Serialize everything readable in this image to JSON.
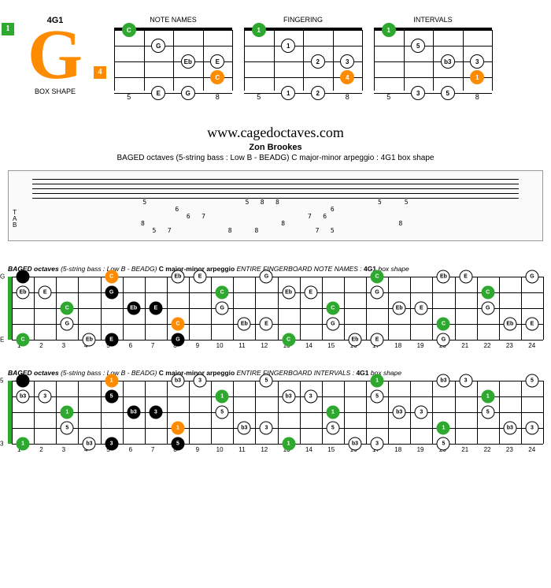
{
  "box": {
    "label": "4G1",
    "shape_text": "BOX SHAPE",
    "marker1": "1",
    "marker4": "4"
  },
  "mini": [
    {
      "title": "NOTE NAMES",
      "frets": [
        "5",
        "6",
        "7",
        "8"
      ],
      "notes": [
        {
          "s": 0,
          "f": 0,
          "l": "C",
          "c": "green"
        },
        {
          "s": 1,
          "f": 1,
          "l": "G",
          "c": "white"
        },
        {
          "s": 2,
          "f": 2,
          "l": "Eb",
          "c": "white"
        },
        {
          "s": 2,
          "f": 3,
          "l": "E",
          "c": "white"
        },
        {
          "s": 3,
          "f": 3,
          "l": "C",
          "c": "orange"
        },
        {
          "s": 4,
          "f": 1,
          "l": "E",
          "c": "white"
        },
        {
          "s": 4,
          "f": 2,
          "l": "G",
          "c": "white"
        }
      ]
    },
    {
      "title": "FINGERING",
      "frets": [
        "5",
        "6",
        "7",
        "8"
      ],
      "notes": [
        {
          "s": 0,
          "f": 0,
          "l": "1",
          "c": "green"
        },
        {
          "s": 1,
          "f": 1,
          "l": "1",
          "c": "white"
        },
        {
          "s": 2,
          "f": 2,
          "l": "2",
          "c": "white"
        },
        {
          "s": 2,
          "f": 3,
          "l": "3",
          "c": "white"
        },
        {
          "s": 3,
          "f": 3,
          "l": "4",
          "c": "orange"
        },
        {
          "s": 4,
          "f": 1,
          "l": "1",
          "c": "white"
        },
        {
          "s": 4,
          "f": 2,
          "l": "2",
          "c": "white"
        }
      ]
    },
    {
      "title": "INTERVALS",
      "frets": [
        "5",
        "6",
        "7",
        "8"
      ],
      "notes": [
        {
          "s": 0,
          "f": 0,
          "l": "1",
          "c": "green"
        },
        {
          "s": 1,
          "f": 1,
          "l": "5",
          "c": "white"
        },
        {
          "s": 2,
          "f": 2,
          "l": "b3",
          "c": "white"
        },
        {
          "s": 2,
          "f": 3,
          "l": "3",
          "c": "white"
        },
        {
          "s": 3,
          "f": 3,
          "l": "1",
          "c": "orange"
        },
        {
          "s": 4,
          "f": 1,
          "l": "3",
          "c": "white"
        },
        {
          "s": 4,
          "f": 2,
          "l": "5",
          "c": "white"
        }
      ]
    }
  ],
  "notation": {
    "url": "www.cagedoctaves.com",
    "author": "Zon Brookes",
    "subtitle": "BAGED octaves (5-string bass : Low B - BEADG) C major-minor arpeggio : 4G1 box shape"
  },
  "tab": {
    "lines": [
      "5                          5   8   8                          5      5",
      "         6                                        6                    ",
      "            6   7                           7   6                      ",
      "8                                    8                              8  ",
      "   5   7               8      8               7   5                    "
    ]
  },
  "fullboards": [
    {
      "title_pre": "BAGED octaves",
      "title_mid": " (5-string bass : Low B - BEADG) ",
      "title_bold": "C major-minor arpeggio",
      "title_post": " ENTIRE FINGERBOARD NOTE NAMES : ",
      "title_end": "4G1",
      "title_end2": " box shape",
      "open": [
        "G",
        "",
        "",
        "",
        "E"
      ],
      "notes": [
        {
          "s": 0,
          "f": 1,
          "l": "",
          "c": "black"
        },
        {
          "s": 0,
          "f": 5,
          "l": "C",
          "c": "orange"
        },
        {
          "s": 0,
          "f": 8,
          "l": "Eb",
          "c": "white"
        },
        {
          "s": 0,
          "f": 9,
          "l": "E",
          "c": "white"
        },
        {
          "s": 0,
          "f": 12,
          "l": "G",
          "c": "white"
        },
        {
          "s": 0,
          "f": 17,
          "l": "C",
          "c": "green"
        },
        {
          "s": 0,
          "f": 20,
          "l": "Eb",
          "c": "white"
        },
        {
          "s": 0,
          "f": 21,
          "l": "E",
          "c": "white"
        },
        {
          "s": 0,
          "f": 24,
          "l": "G",
          "c": "white"
        },
        {
          "s": 1,
          "f": 1,
          "l": "Eb",
          "c": "white"
        },
        {
          "s": 1,
          "f": 2,
          "l": "E",
          "c": "white"
        },
        {
          "s": 1,
          "f": 5,
          "l": "G",
          "c": "black"
        },
        {
          "s": 1,
          "f": 10,
          "l": "C",
          "c": "green"
        },
        {
          "s": 1,
          "f": 13,
          "l": "Eb",
          "c": "white"
        },
        {
          "s": 1,
          "f": 14,
          "l": "E",
          "c": "white"
        },
        {
          "s": 1,
          "f": 17,
          "l": "G",
          "c": "white"
        },
        {
          "s": 1,
          "f": 22,
          "l": "C",
          "c": "green"
        },
        {
          "s": 2,
          "f": 3,
          "l": "C",
          "c": "green"
        },
        {
          "s": 2,
          "f": 6,
          "l": "Eb",
          "c": "black"
        },
        {
          "s": 2,
          "f": 7,
          "l": "E",
          "c": "black"
        },
        {
          "s": 2,
          "f": 10,
          "l": "G",
          "c": "white"
        },
        {
          "s": 2,
          "f": 15,
          "l": "C",
          "c": "green"
        },
        {
          "s": 2,
          "f": 18,
          "l": "Eb",
          "c": "white"
        },
        {
          "s": 2,
          "f": 19,
          "l": "E",
          "c": "white"
        },
        {
          "s": 2,
          "f": 22,
          "l": "G",
          "c": "white"
        },
        {
          "s": 3,
          "f": 3,
          "l": "G",
          "c": "white"
        },
        {
          "s": 3,
          "f": 8,
          "l": "C",
          "c": "orange"
        },
        {
          "s": 3,
          "f": 11,
          "l": "Eb",
          "c": "white"
        },
        {
          "s": 3,
          "f": 12,
          "l": "E",
          "c": "white"
        },
        {
          "s": 3,
          "f": 15,
          "l": "G",
          "c": "white"
        },
        {
          "s": 3,
          "f": 20,
          "l": "C",
          "c": "green"
        },
        {
          "s": 3,
          "f": 23,
          "l": "Eb",
          "c": "white"
        },
        {
          "s": 3,
          "f": 24,
          "l": "E",
          "c": "white"
        },
        {
          "s": 4,
          "f": 1,
          "l": "C",
          "c": "green"
        },
        {
          "s": 4,
          "f": 4,
          "l": "Eb",
          "c": "white"
        },
        {
          "s": 4,
          "f": 5,
          "l": "E",
          "c": "black"
        },
        {
          "s": 4,
          "f": 8,
          "l": "G",
          "c": "black"
        },
        {
          "s": 4,
          "f": 13,
          "l": "C",
          "c": "green"
        },
        {
          "s": 4,
          "f": 16,
          "l": "Eb",
          "c": "white"
        },
        {
          "s": 4,
          "f": 17,
          "l": "E",
          "c": "white"
        },
        {
          "s": 4,
          "f": 20,
          "l": "G",
          "c": "white"
        }
      ]
    },
    {
      "title_pre": "BAGED octaves",
      "title_mid": " (5-string bass : Low B - BEADG) ",
      "title_bold": "C major-minor arpeggio",
      "title_post": " ENTIRE FINGERBOARD INTERVALS : ",
      "title_end": "4G1",
      "title_end2": " box shape",
      "open": [
        "5",
        "",
        "",
        "",
        "3"
      ],
      "notes": [
        {
          "s": 0,
          "f": 1,
          "l": "",
          "c": "black"
        },
        {
          "s": 0,
          "f": 5,
          "l": "1",
          "c": "orange"
        },
        {
          "s": 0,
          "f": 8,
          "l": "b3",
          "c": "white"
        },
        {
          "s": 0,
          "f": 9,
          "l": "3",
          "c": "white"
        },
        {
          "s": 0,
          "f": 12,
          "l": "5",
          "c": "white"
        },
        {
          "s": 0,
          "f": 17,
          "l": "1",
          "c": "green"
        },
        {
          "s": 0,
          "f": 20,
          "l": "b3",
          "c": "white"
        },
        {
          "s": 0,
          "f": 21,
          "l": "3",
          "c": "white"
        },
        {
          "s": 0,
          "f": 24,
          "l": "5",
          "c": "white"
        },
        {
          "s": 1,
          "f": 1,
          "l": "b3",
          "c": "white"
        },
        {
          "s": 1,
          "f": 2,
          "l": "3",
          "c": "white"
        },
        {
          "s": 1,
          "f": 5,
          "l": "5",
          "c": "black"
        },
        {
          "s": 1,
          "f": 10,
          "l": "1",
          "c": "green"
        },
        {
          "s": 1,
          "f": 13,
          "l": "b3",
          "c": "white"
        },
        {
          "s": 1,
          "f": 14,
          "l": "3",
          "c": "white"
        },
        {
          "s": 1,
          "f": 17,
          "l": "5",
          "c": "white"
        },
        {
          "s": 1,
          "f": 22,
          "l": "1",
          "c": "green"
        },
        {
          "s": 2,
          "f": 3,
          "l": "1",
          "c": "green"
        },
        {
          "s": 2,
          "f": 6,
          "l": "b3",
          "c": "black"
        },
        {
          "s": 2,
          "f": 7,
          "l": "3",
          "c": "black"
        },
        {
          "s": 2,
          "f": 10,
          "l": "5",
          "c": "white"
        },
        {
          "s": 2,
          "f": 15,
          "l": "1",
          "c": "green"
        },
        {
          "s": 2,
          "f": 18,
          "l": "b3",
          "c": "white"
        },
        {
          "s": 2,
          "f": 19,
          "l": "3",
          "c": "white"
        },
        {
          "s": 2,
          "f": 22,
          "l": "5",
          "c": "white"
        },
        {
          "s": 3,
          "f": 3,
          "l": "5",
          "c": "white"
        },
        {
          "s": 3,
          "f": 8,
          "l": "1",
          "c": "orange"
        },
        {
          "s": 3,
          "f": 11,
          "l": "b3",
          "c": "white"
        },
        {
          "s": 3,
          "f": 12,
          "l": "3",
          "c": "white"
        },
        {
          "s": 3,
          "f": 15,
          "l": "5",
          "c": "white"
        },
        {
          "s": 3,
          "f": 20,
          "l": "1",
          "c": "green"
        },
        {
          "s": 3,
          "f": 23,
          "l": "b3",
          "c": "white"
        },
        {
          "s": 3,
          "f": 24,
          "l": "3",
          "c": "white"
        },
        {
          "s": 4,
          "f": 1,
          "l": "1",
          "c": "green"
        },
        {
          "s": 4,
          "f": 4,
          "l": "b3",
          "c": "white"
        },
        {
          "s": 4,
          "f": 5,
          "l": "3",
          "c": "black"
        },
        {
          "s": 4,
          "f": 8,
          "l": "5",
          "c": "black"
        },
        {
          "s": 4,
          "f": 13,
          "l": "1",
          "c": "green"
        },
        {
          "s": 4,
          "f": 16,
          "l": "b3",
          "c": "white"
        },
        {
          "s": 4,
          "f": 17,
          "l": "3",
          "c": "white"
        },
        {
          "s": 4,
          "f": 20,
          "l": "5",
          "c": "white"
        }
      ]
    }
  ],
  "frets24": [
    "1",
    "2",
    "3",
    "4",
    "5",
    "6",
    "7",
    "8",
    "9",
    "10",
    "11",
    "12",
    "13",
    "14",
    "15",
    "16",
    "17",
    "18",
    "19",
    "20",
    "21",
    "22",
    "23",
    "24"
  ],
  "colors": {
    "green": "#2ea82e",
    "orange": "#ff8c00",
    "black": "#000",
    "white": "#fff"
  }
}
